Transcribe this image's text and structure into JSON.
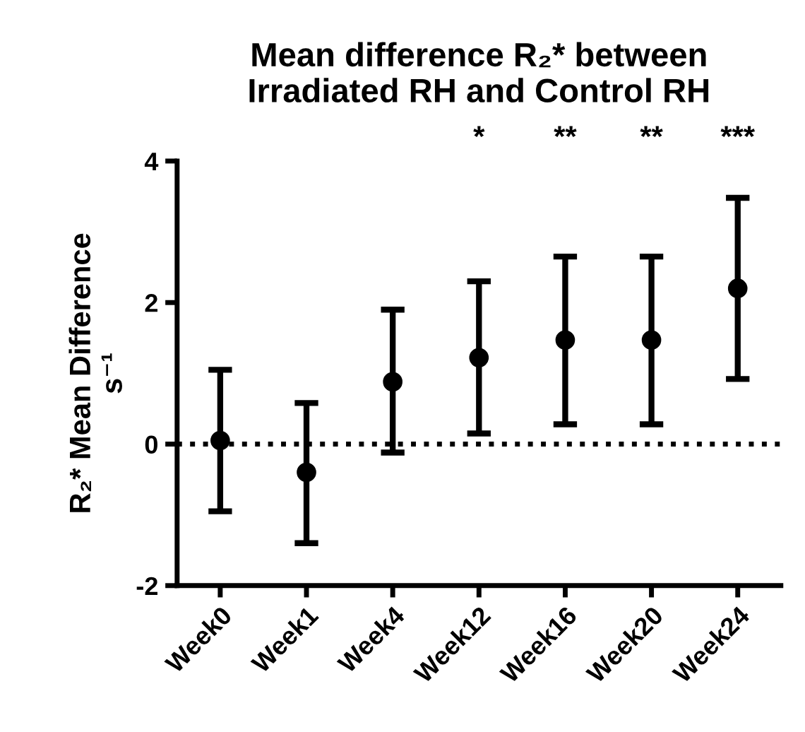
{
  "chart_data": {
    "type": "scatter",
    "title": "Mean difference R₂* between\nIrradiated RH and Control RH",
    "ylabel": "R₂* Mean Difference\ns⁻¹",
    "categories": [
      "Week0",
      "Week1",
      "Week4",
      "Week12",
      "Week16",
      "Week20",
      "Week24"
    ],
    "series": [
      {
        "color": "#000000",
        "values": [
          0.05,
          -0.4,
          0.88,
          1.22,
          1.47,
          1.47,
          2.2
        ],
        "errors": [
          [
            -0.95,
            1.05
          ],
          [
            -1.4,
            0.58
          ],
          [
            -0.12,
            1.9
          ],
          [
            0.15,
            2.3
          ],
          [
            0.28,
            2.65
          ],
          [
            0.28,
            2.65
          ],
          [
            0.92,
            3.48
          ]
        ]
      }
    ],
    "marker": "circle",
    "ylim": [
      -2,
      4
    ],
    "yticks": [
      -2,
      0,
      2,
      4
    ],
    "grid": false,
    "legend": false,
    "ref_lines": [
      {
        "axis": "y",
        "value": 0,
        "color": "#000000",
        "line_style": "dotted"
      }
    ],
    "annotations": [
      "*",
      "**",
      "**",
      "***"
    ]
  }
}
